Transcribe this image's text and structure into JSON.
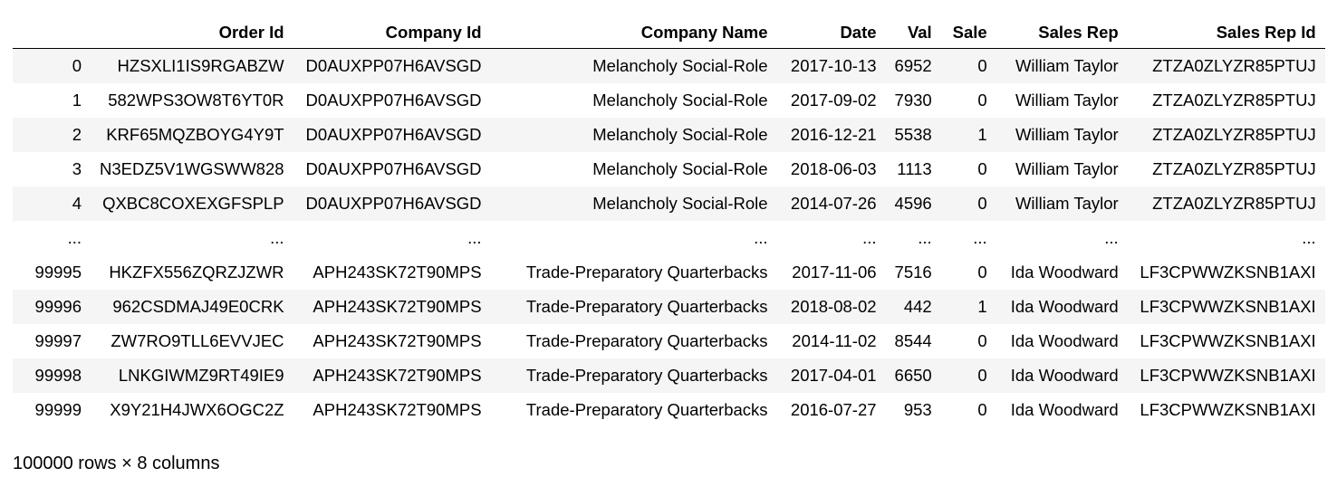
{
  "table": {
    "columns": [
      "",
      "Order Id",
      "Company Id",
      "Company Name",
      "Date",
      "Val",
      "Sale",
      "Sales Rep",
      "Sales Rep Id"
    ],
    "rows": [
      [
        "0",
        "HZSXLI1IS9RGABZW",
        "D0AUXPP07H6AVSGD",
        "Melancholy Social-Role",
        "2017-10-13",
        "6952",
        "0",
        "William Taylor",
        "ZTZA0ZLYZR85PTUJ"
      ],
      [
        "1",
        "582WPS3OW8T6YT0R",
        "D0AUXPP07H6AVSGD",
        "Melancholy Social-Role",
        "2017-09-02",
        "7930",
        "0",
        "William Taylor",
        "ZTZA0ZLYZR85PTUJ"
      ],
      [
        "2",
        "KRF65MQZBOYG4Y9T",
        "D0AUXPP07H6AVSGD",
        "Melancholy Social-Role",
        "2016-12-21",
        "5538",
        "1",
        "William Taylor",
        "ZTZA0ZLYZR85PTUJ"
      ],
      [
        "3",
        "N3EDZ5V1WGSWW828",
        "D0AUXPP07H6AVSGD",
        "Melancholy Social-Role",
        "2018-06-03",
        "1113",
        "0",
        "William Taylor",
        "ZTZA0ZLYZR85PTUJ"
      ],
      [
        "4",
        "QXBC8COXEXGFSPLP",
        "D0AUXPP07H6AVSGD",
        "Melancholy Social-Role",
        "2014-07-26",
        "4596",
        "0",
        "William Taylor",
        "ZTZA0ZLYZR85PTUJ"
      ],
      [
        "...",
        "...",
        "...",
        "...",
        "...",
        "...",
        "...",
        "...",
        "..."
      ],
      [
        "99995",
        "HKZFX556ZQRZJZWR",
        "APH243SK72T90MPS",
        "Trade-Preparatory Quarterbacks",
        "2017-11-06",
        "7516",
        "0",
        "Ida Woodward",
        "LF3CPWWZKSNB1AXI"
      ],
      [
        "99996",
        "962CSDMAJ49E0CRK",
        "APH243SK72T90MPS",
        "Trade-Preparatory Quarterbacks",
        "2018-08-02",
        "442",
        "1",
        "Ida Woodward",
        "LF3CPWWZKSNB1AXI"
      ],
      [
        "99997",
        "ZW7RO9TLL6EVVJEC",
        "APH243SK72T90MPS",
        "Trade-Preparatory Quarterbacks",
        "2014-11-02",
        "8544",
        "0",
        "Ida Woodward",
        "LF3CPWWZKSNB1AXI"
      ],
      [
        "99998",
        "LNKGIWMZ9RT49IE9",
        "APH243SK72T90MPS",
        "Trade-Preparatory Quarterbacks",
        "2017-04-01",
        "6650",
        "0",
        "Ida Woodward",
        "LF3CPWWZKSNB1AXI"
      ],
      [
        "99999",
        "X9Y21H4JWX6OGC2Z",
        "APH243SK72T90MPS",
        "Trade-Preparatory Quarterbacks",
        "2016-07-27",
        "953",
        "0",
        "Ida Woodward",
        "LF3CPWWZKSNB1AXI"
      ]
    ]
  },
  "summary": "100000 rows × 8 columns",
  "colors": {
    "stripe": "#f5f5f5",
    "header_border": "#000000",
    "text": "#000000"
  }
}
